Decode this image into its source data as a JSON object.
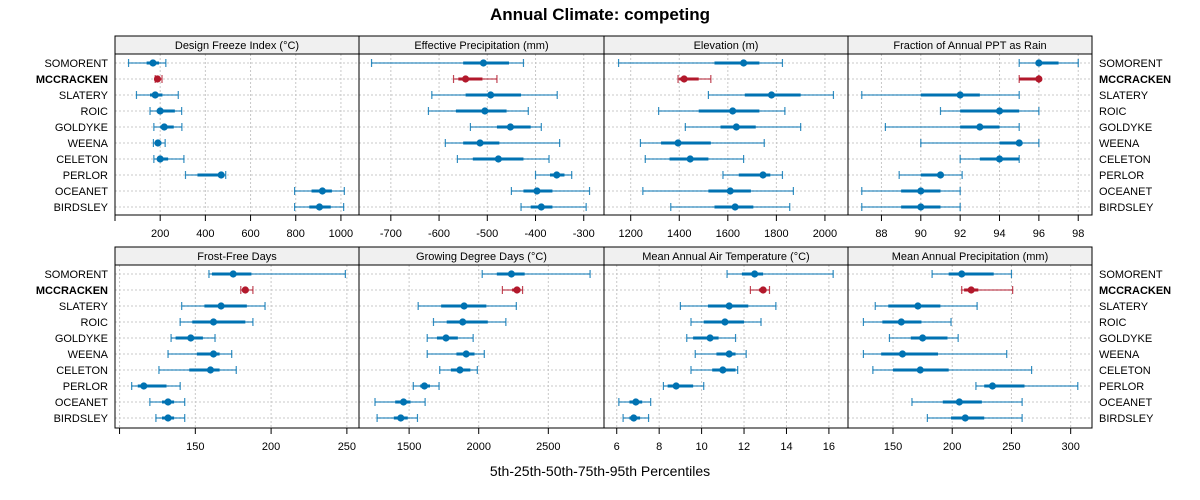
{
  "title": "Annual Climate: competing",
  "x_axis_title": "5th-25th-50th-75th-95th Percentiles",
  "colors": {
    "series": "#0072b2",
    "highlight": "#b2182b",
    "strip_bg": "#f0f0f0",
    "grid": "#c8c8c8"
  },
  "rows": [
    "SOMORENT",
    "MCCRACKEN",
    "SLATERY",
    "ROIC",
    "GOLDYKE",
    "WEENA",
    "CELETON",
    "PERLOR",
    "OCEANET",
    "BIRDSLEY"
  ],
  "highlight_row": "MCCRACKEN",
  "chart_data": [
    {
      "type": "dotplot-percentile",
      "title": "Design Freeze Index (°C)",
      "xlim": [
        0,
        1080
      ],
      "ticks": [
        0,
        200,
        400,
        600,
        800,
        1000
      ],
      "tick_labels": [
        "",
        "200",
        "400",
        "600",
        "800",
        "1000"
      ],
      "series": [
        {
          "name": "SOMORENT",
          "p5": 60,
          "p25": 140,
          "p50": 168,
          "p75": 195,
          "p95": 225
        },
        {
          "name": "MCCRACKEN",
          "p5": 178,
          "p25": 182,
          "p50": 188,
          "p75": 200,
          "p95": 208
        },
        {
          "name": "SLATERY",
          "p5": 95,
          "p25": 155,
          "p50": 178,
          "p75": 210,
          "p95": 280
        },
        {
          "name": "ROIC",
          "p5": 155,
          "p25": 185,
          "p50": 200,
          "p75": 265,
          "p95": 295
        },
        {
          "name": "GOLDYKE",
          "p5": 172,
          "p25": 200,
          "p50": 218,
          "p75": 260,
          "p95": 296
        },
        {
          "name": "WEENA",
          "p5": 170,
          "p25": 178,
          "p50": 190,
          "p75": 205,
          "p95": 222
        },
        {
          "name": "CELETON",
          "p5": 172,
          "p25": 190,
          "p50": 200,
          "p75": 235,
          "p95": 305
        },
        {
          "name": "PERLOR",
          "p5": 312,
          "p25": 365,
          "p50": 470,
          "p75": 480,
          "p95": 490
        },
        {
          "name": "OCEANET",
          "p5": 795,
          "p25": 870,
          "p50": 918,
          "p75": 960,
          "p95": 1015
        },
        {
          "name": "BIRDSLEY",
          "p5": 795,
          "p25": 860,
          "p50": 905,
          "p75": 955,
          "p95": 1012
        }
      ]
    },
    {
      "type": "dotplot-percentile",
      "title": "Effective Precipitation (mm)",
      "xlim": [
        -766,
        -258
      ],
      "ticks": [
        -700,
        -600,
        -500,
        -400,
        -300
      ],
      "tick_labels": [
        "-700",
        "-600",
        "-500",
        "-400",
        "-300"
      ],
      "series": [
        {
          "name": "SOMORENT",
          "p5": -740,
          "p25": -550,
          "p50": -508,
          "p75": -455,
          "p95": -425
        },
        {
          "name": "MCCRACKEN",
          "p5": -570,
          "p25": -560,
          "p50": -545,
          "p75": -510,
          "p95": -480
        },
        {
          "name": "SLATERY",
          "p5": -615,
          "p25": -545,
          "p50": -493,
          "p75": -430,
          "p95": -355
        },
        {
          "name": "ROIC",
          "p5": -622,
          "p25": -565,
          "p50": -505,
          "p75": -460,
          "p95": -415
        },
        {
          "name": "GOLDYKE",
          "p5": -535,
          "p25": -480,
          "p50": -452,
          "p75": -410,
          "p95": -388
        },
        {
          "name": "WEENA",
          "p5": -587,
          "p25": -550,
          "p50": -515,
          "p75": -475,
          "p95": -350
        },
        {
          "name": "CELETON",
          "p5": -562,
          "p25": -530,
          "p50": -477,
          "p75": -425,
          "p95": -372
        },
        {
          "name": "PERLOR",
          "p5": -400,
          "p25": -370,
          "p50": -356,
          "p75": -340,
          "p95": -325
        },
        {
          "name": "OCEANET",
          "p5": -450,
          "p25": -425,
          "p50": -397,
          "p75": -365,
          "p95": -288
        },
        {
          "name": "BIRDSLEY",
          "p5": -430,
          "p25": -410,
          "p50": -388,
          "p75": -365,
          "p95": -295
        }
      ]
    },
    {
      "type": "dotplot-percentile",
      "title": "Elevation (m)",
      "xlim": [
        1090,
        2095
      ],
      "ticks": [
        1200,
        1400,
        1600,
        1800,
        2000
      ],
      "tick_labels": [
        "1200",
        "1400",
        "1600",
        "1800",
        "2000"
      ],
      "series": [
        {
          "name": "SOMORENT",
          "p5": 1150,
          "p25": 1545,
          "p50": 1665,
          "p75": 1730,
          "p95": 1825
        },
        {
          "name": "MCCRACKEN",
          "p5": 1395,
          "p25": 1400,
          "p50": 1420,
          "p75": 1480,
          "p95": 1530
        },
        {
          "name": "SLATERY",
          "p5": 1520,
          "p25": 1670,
          "p50": 1780,
          "p75": 1900,
          "p95": 2035
        },
        {
          "name": "ROIC",
          "p5": 1315,
          "p25": 1480,
          "p50": 1620,
          "p75": 1730,
          "p95": 1835
        },
        {
          "name": "GOLDYKE",
          "p5": 1425,
          "p25": 1570,
          "p50": 1635,
          "p75": 1715,
          "p95": 1900
        },
        {
          "name": "WEENA",
          "p5": 1240,
          "p25": 1325,
          "p50": 1395,
          "p75": 1530,
          "p95": 1750
        },
        {
          "name": "CELETON",
          "p5": 1260,
          "p25": 1360,
          "p50": 1445,
          "p75": 1520,
          "p95": 1665
        },
        {
          "name": "PERLOR",
          "p5": 1580,
          "p25": 1645,
          "p50": 1745,
          "p75": 1775,
          "p95": 1825
        },
        {
          "name": "OCEANET",
          "p5": 1250,
          "p25": 1520,
          "p50": 1610,
          "p75": 1695,
          "p95": 1870
        },
        {
          "name": "BIRDSLEY",
          "p5": 1365,
          "p25": 1545,
          "p50": 1630,
          "p75": 1705,
          "p95": 1855
        }
      ]
    },
    {
      "type": "dotplot-percentile",
      "title": "Fraction of Annual PPT as Rain",
      "xlim": [
        86.3,
        98.7
      ],
      "ticks": [
        88,
        90,
        92,
        94,
        96,
        98
      ],
      "tick_labels": [
        "88",
        "90",
        "92",
        "94",
        "96",
        "98"
      ],
      "series": [
        {
          "name": "SOMORENT",
          "p5": 95,
          "p25": 96,
          "p50": 96,
          "p75": 97,
          "p95": 98
        },
        {
          "name": "MCCRACKEN",
          "p5": 95,
          "p25": 95,
          "p50": 96,
          "p75": 96,
          "p95": 96
        },
        {
          "name": "SLATERY",
          "p5": 87,
          "p25": 90,
          "p50": 92,
          "p75": 93,
          "p95": 95
        },
        {
          "name": "ROIC",
          "p5": 91,
          "p25": 92,
          "p50": 94,
          "p75": 95,
          "p95": 96
        },
        {
          "name": "GOLDYKE",
          "p5": 88.2,
          "p25": 92,
          "p50": 93,
          "p75": 94,
          "p95": 95
        },
        {
          "name": "WEENA",
          "p5": 90,
          "p25": 94,
          "p50": 95,
          "p75": 95,
          "p95": 96
        },
        {
          "name": "CELETON",
          "p5": 92,
          "p25": 93,
          "p50": 94,
          "p75": 95,
          "p95": 95
        },
        {
          "name": "PERLOR",
          "p5": 88.9,
          "p25": 90,
          "p50": 91,
          "p75": 91,
          "p95": 92.1
        },
        {
          "name": "OCEANET",
          "p5": 87,
          "p25": 89,
          "p50": 90,
          "p75": 91,
          "p95": 92
        },
        {
          "name": "BIRDSLEY",
          "p5": 87,
          "p25": 89,
          "p50": 90,
          "p75": 91,
          "p95": 92
        }
      ]
    },
    {
      "type": "dotplot-percentile",
      "title": "Frost-Free Days",
      "xlim": [
        97,
        258
      ],
      "ticks": [
        100,
        150,
        200,
        250
      ],
      "tick_labels": [
        "",
        "150",
        "200",
        "250"
      ],
      "series": [
        {
          "name": "SOMORENT",
          "p5": 159,
          "p25": 161,
          "p50": 175,
          "p75": 187,
          "p95": 249
        },
        {
          "name": "MCCRACKEN",
          "p5": 180,
          "p25": 181,
          "p50": 183,
          "p75": 185,
          "p95": 188
        },
        {
          "name": "SLATERY",
          "p5": 141,
          "p25": 156,
          "p50": 167,
          "p75": 184,
          "p95": 196
        },
        {
          "name": "ROIC",
          "p5": 140,
          "p25": 148,
          "p50": 162,
          "p75": 183,
          "p95": 188
        },
        {
          "name": "GOLDYKE",
          "p5": 134,
          "p25": 137,
          "p50": 147,
          "p75": 155,
          "p95": 163
        },
        {
          "name": "WEENA",
          "p5": 132,
          "p25": 151,
          "p50": 162,
          "p75": 166,
          "p95": 174
        },
        {
          "name": "CELETON",
          "p5": 126,
          "p25": 146,
          "p50": 160,
          "p75": 166,
          "p95": 177
        },
        {
          "name": "PERLOR",
          "p5": 108,
          "p25": 112,
          "p50": 116,
          "p75": 131,
          "p95": 140
        },
        {
          "name": "OCEANET",
          "p5": 120,
          "p25": 128,
          "p50": 132,
          "p75": 136,
          "p95": 143
        },
        {
          "name": "BIRDSLEY",
          "p5": 124,
          "p25": 128,
          "p50": 132,
          "p75": 136,
          "p95": 143
        }
      ]
    },
    {
      "type": "dotplot-percentile",
      "title": "Growing Degree Days (°C)",
      "xlim": [
        1140,
        2900
      ],
      "ticks": [
        1500,
        2000,
        2500
      ],
      "tick_labels": [
        "1500",
        "2000",
        "2500"
      ],
      "series": [
        {
          "name": "SOMORENT",
          "p5": 2025,
          "p25": 2130,
          "p50": 2235,
          "p75": 2330,
          "p95": 2800
        },
        {
          "name": "MCCRACKEN",
          "p5": 2170,
          "p25": 2240,
          "p50": 2275,
          "p75": 2300,
          "p95": 2315
        },
        {
          "name": "SLATERY",
          "p5": 1565,
          "p25": 1730,
          "p50": 1895,
          "p75": 2055,
          "p95": 2270
        },
        {
          "name": "ROIC",
          "p5": 1675,
          "p25": 1770,
          "p50": 1885,
          "p75": 2065,
          "p95": 2195
        },
        {
          "name": "GOLDYKE",
          "p5": 1630,
          "p25": 1700,
          "p50": 1765,
          "p75": 1850,
          "p95": 1960
        },
        {
          "name": "WEENA",
          "p5": 1630,
          "p25": 1840,
          "p50": 1910,
          "p75": 1970,
          "p95": 2040
        },
        {
          "name": "CELETON",
          "p5": 1720,
          "p25": 1800,
          "p50": 1865,
          "p75": 1940,
          "p95": 1990
        },
        {
          "name": "PERLOR",
          "p5": 1530,
          "p25": 1580,
          "p50": 1610,
          "p75": 1650,
          "p95": 1715
        },
        {
          "name": "OCEANET",
          "p5": 1255,
          "p25": 1400,
          "p50": 1460,
          "p75": 1510,
          "p95": 1615
        },
        {
          "name": "BIRDSLEY",
          "p5": 1270,
          "p25": 1390,
          "p50": 1440,
          "p75": 1490,
          "p95": 1560
        }
      ]
    },
    {
      "type": "dotplot-percentile",
      "title": "Mean Annual Air Temperature (°C)",
      "xlim": [
        5.4,
        16.9
      ],
      "ticks": [
        6,
        8,
        10,
        12,
        14,
        16
      ],
      "tick_labels": [
        "6",
        "8",
        "10",
        "12",
        "14",
        "16"
      ],
      "series": [
        {
          "name": "SOMORENT",
          "p5": 11.2,
          "p25": 11.9,
          "p50": 12.5,
          "p75": 12.9,
          "p95": 16.2
        },
        {
          "name": "MCCRACKEN",
          "p5": 12.3,
          "p25": 12.7,
          "p50": 12.9,
          "p75": 13.0,
          "p95": 13.2
        },
        {
          "name": "SLATERY",
          "p5": 9.0,
          "p25": 10.3,
          "p50": 11.3,
          "p75": 12.2,
          "p95": 13.5
        },
        {
          "name": "ROIC",
          "p5": 9.5,
          "p25": 10.1,
          "p50": 11.1,
          "p75": 12.0,
          "p95": 12.8
        },
        {
          "name": "GOLDYKE",
          "p5": 9.3,
          "p25": 9.6,
          "p50": 10.4,
          "p75": 10.8,
          "p95": 11.6
        },
        {
          "name": "WEENA",
          "p5": 9.7,
          "p25": 10.7,
          "p50": 11.3,
          "p75": 11.6,
          "p95": 12.1
        },
        {
          "name": "CELETON",
          "p5": 9.5,
          "p25": 10.5,
          "p50": 11.0,
          "p75": 11.6,
          "p95": 11.7
        },
        {
          "name": "PERLOR",
          "p5": 8.2,
          "p25": 8.4,
          "p50": 8.8,
          "p75": 9.6,
          "p95": 10.1
        },
        {
          "name": "OCEANET",
          "p5": 6.1,
          "p25": 6.6,
          "p50": 6.9,
          "p75": 7.2,
          "p95": 7.6
        },
        {
          "name": "BIRDSLEY",
          "p5": 6.3,
          "p25": 6.6,
          "p50": 6.8,
          "p75": 7.1,
          "p95": 7.5
        }
      ]
    },
    {
      "type": "dotplot-percentile",
      "title": "Mean Annual Precipitation (mm)",
      "xlim": [
        112,
        318
      ],
      "ticks": [
        150,
        200,
        250,
        300
      ],
      "tick_labels": [
        "150",
        "200",
        "250",
        "300"
      ],
      "series": [
        {
          "name": "SOMORENT",
          "p5": 183,
          "p25": 197,
          "p50": 208,
          "p75": 235,
          "p95": 250
        },
        {
          "name": "MCCRACKEN",
          "p5": 208,
          "p25": 210,
          "p50": 216,
          "p75": 222,
          "p95": 251
        },
        {
          "name": "SLATERY",
          "p5": 135,
          "p25": 146,
          "p50": 171,
          "p75": 190,
          "p95": 221
        },
        {
          "name": "ROIC",
          "p5": 125,
          "p25": 141,
          "p50": 157,
          "p75": 174,
          "p95": 199
        },
        {
          "name": "GOLDYKE",
          "p5": 147,
          "p25": 165,
          "p50": 175,
          "p75": 196,
          "p95": 205
        },
        {
          "name": "WEENA",
          "p5": 125,
          "p25": 140,
          "p50": 158,
          "p75": 188,
          "p95": 246
        },
        {
          "name": "CELETON",
          "p5": 133,
          "p25": 150,
          "p50": 173,
          "p75": 197,
          "p95": 267
        },
        {
          "name": "PERLOR",
          "p5": 220,
          "p25": 227,
          "p50": 234,
          "p75": 261,
          "p95": 306
        },
        {
          "name": "OCEANET",
          "p5": 166,
          "p25": 192,
          "p50": 206,
          "p75": 225,
          "p95": 259
        },
        {
          "name": "BIRDSLEY",
          "p5": 179,
          "p25": 199,
          "p50": 211,
          "p75": 227,
          "p95": 259
        }
      ]
    }
  ]
}
